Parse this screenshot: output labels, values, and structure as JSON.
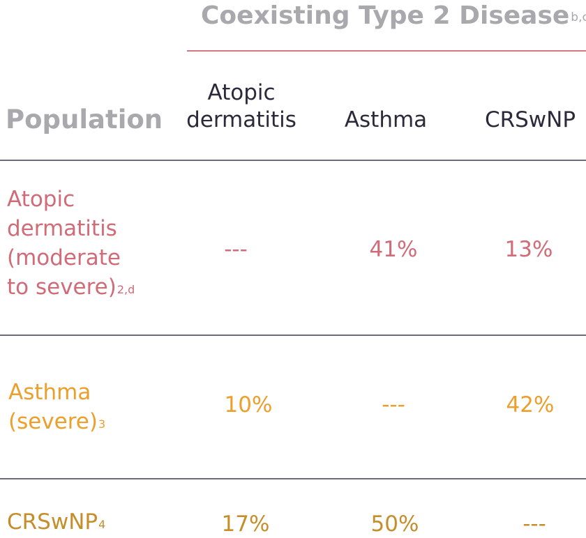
{
  "header": {
    "super_title": "Coexisting Type 2 Disease",
    "super_title_footnote": "b,c",
    "population_label": "Population",
    "columns": [
      {
        "line1": "Atopic",
        "line2": "dermatitis"
      },
      {
        "line1": "Asthma"
      },
      {
        "line1": "CRSwNP"
      }
    ]
  },
  "rows": [
    {
      "label_lines": [
        "Atopic",
        "dermatitis",
        "(moderate",
        "to severe)"
      ],
      "footnote": "2,d",
      "values": [
        "---",
        "41%",
        "13%"
      ],
      "color": "#d16b78"
    },
    {
      "label_lines": [
        "Asthma",
        "(severe)"
      ],
      "footnote": "3",
      "values": [
        "10%",
        "---",
        "42%"
      ],
      "color": "#ec9f2b"
    },
    {
      "label_lines": [
        "CRSwNP"
      ],
      "footnote": "4",
      "values": [
        "17%",
        "50%",
        "---"
      ],
      "color": "#c68e2a"
    }
  ],
  "colors": {
    "header_gray": "#a9a9ad",
    "header_rule": "#d5747f",
    "divider": "#6a6a78",
    "column_text": "#2a2a3a"
  }
}
